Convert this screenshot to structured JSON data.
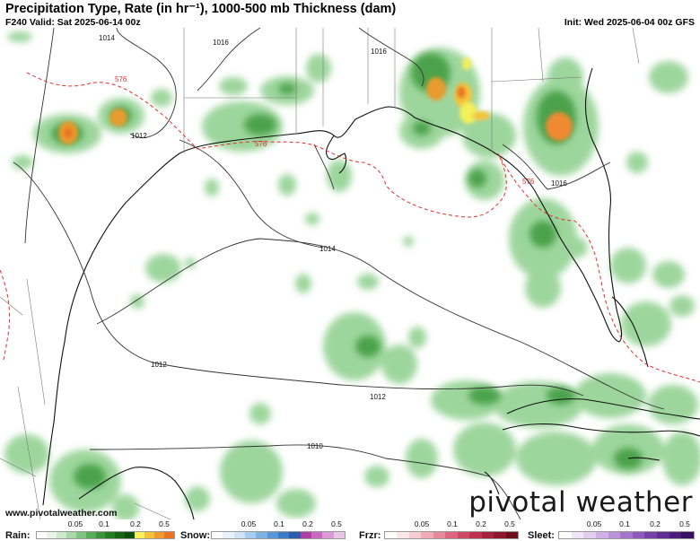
{
  "header": {
    "title": "Precipitation Type, Rate (in hr⁻¹), 1000-500 mb Thickness (dam)",
    "valid": "F240 Valid: Sat 2025-06-14 00z",
    "init": "Init: Wed 2025-06-04 00z GFS"
  },
  "map": {
    "isobar_labels": [
      "1014",
      "1016",
      "1016",
      "1016",
      "1012",
      "1014",
      "1012",
      "1012",
      "1010"
    ],
    "thickness_labels": [
      "576",
      "576",
      "576"
    ]
  },
  "footer": {
    "credit": "www.pivotalweather.com",
    "brand": "pivotal weather"
  },
  "legend": {
    "ticks": [
      "0.05",
      "0.1",
      "0.2",
      "0.5"
    ],
    "rain": {
      "label": "Rain:",
      "colors": [
        "#ffffff",
        "#e9f5e9",
        "#cde9cd",
        "#a8d8a8",
        "#7fc47f",
        "#58ae58",
        "#3c953c",
        "#257d25",
        "#146514",
        "#0c500c",
        "#f6f05a",
        "#f3c23a",
        "#ef9a2e",
        "#ea7424"
      ]
    },
    "snow": {
      "label": "Snow:",
      "colors": [
        "#ffffff",
        "#e9f2fb",
        "#cfe3f5",
        "#a8cced",
        "#7db2e3",
        "#5896d6",
        "#3b7ac6",
        "#2b5fad",
        "#b03da8",
        "#c96ac0",
        "#dc9bd4",
        "#ebc5e6"
      ]
    },
    "frzr": {
      "label": "Frzr:",
      "colors": [
        "#ffffff",
        "#fbe6e9",
        "#f6cbd2",
        "#f0abb7",
        "#e7889b",
        "#dd6580",
        "#cf4866",
        "#bd324f",
        "#a6223c",
        "#8c162c",
        "#6e0d1e"
      ]
    },
    "sleet": {
      "label": "Sleet:",
      "colors": [
        "#ffffff",
        "#f1e6f7",
        "#e2cdef",
        "#d0b1e5",
        "#bb93d9",
        "#a575cb",
        "#8e5abb",
        "#7740a8",
        "#612c93",
        "#4c1c7d",
        "#371065"
      ]
    }
  }
}
